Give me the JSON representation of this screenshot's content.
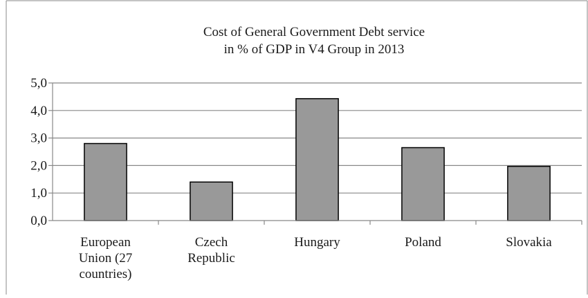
{
  "chart_data": {
    "type": "bar",
    "title_lines": [
      "Cost of General Government Debt service",
      "in % of GDP in V4 Group in 2013"
    ],
    "categories": [
      [
        "European",
        "Union (27",
        "countries)"
      ],
      [
        "Czech",
        "Republic"
      ],
      [
        "Hungary"
      ],
      [
        "Poland"
      ],
      [
        "Slovakia"
      ]
    ],
    "values": [
      2.8,
      1.4,
      4.43,
      2.65,
      1.97
    ],
    "y_ticks": [
      "0,0",
      "1,0",
      "2,0",
      "3,0",
      "4,0",
      "5,0"
    ],
    "ylim": [
      0,
      5
    ],
    "xlabel": "",
    "ylabel": "",
    "grid": true,
    "bar_color": "#999999",
    "bar_stroke": "#000000",
    "grid_color": "#888888"
  }
}
